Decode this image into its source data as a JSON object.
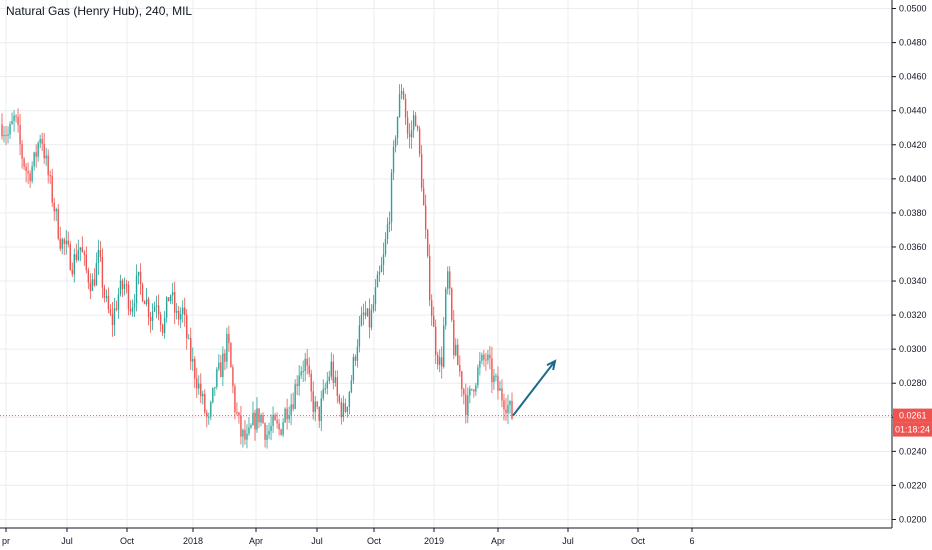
{
  "header": {
    "title": "Natural Gas (Henry Hub), 240, MIL"
  },
  "chart_data": {
    "type": "line",
    "title": "Natural Gas (Henry Hub), 240, MIL",
    "ylim": [
      0.0195,
      0.0505
    ],
    "y_ticks": [
      "0.0500",
      "0.0480",
      "0.0460",
      "0.0440",
      "0.0420",
      "0.0400",
      "0.0380",
      "0.0360",
      "0.0340",
      "0.0320",
      "0.0300",
      "0.0280",
      "0.0260",
      "0.0240",
      "0.0220",
      "0.0200"
    ],
    "x_ticks": [
      "pr",
      "Jul",
      "Oct",
      "2018",
      "Apr",
      "Jul",
      "Oct",
      "2019",
      "Apr",
      "Jul",
      "Oct",
      "6"
    ],
    "series": [
      {
        "values": [
          0.0432,
          0.0425,
          0.0436,
          0.0415,
          0.0402,
          0.041,
          0.0428,
          0.0405,
          0.0385,
          0.0365,
          0.0358,
          0.035,
          0.0362,
          0.0346,
          0.0338,
          0.0354,
          0.0328,
          0.0315,
          0.0332,
          0.0338,
          0.0325,
          0.034,
          0.0333,
          0.032,
          0.033,
          0.0312,
          0.0335,
          0.0318,
          0.0322,
          0.0298,
          0.0285,
          0.027,
          0.0255,
          0.028,
          0.029,
          0.0305,
          0.0268,
          0.025,
          0.0245,
          0.0258,
          0.0262,
          0.025,
          0.0255,
          0.0252,
          0.0265,
          0.027,
          0.0288,
          0.0292,
          0.027,
          0.026,
          0.0275,
          0.029,
          0.027,
          0.0262,
          0.028,
          0.0305,
          0.032,
          0.0315,
          0.0335,
          0.035,
          0.038,
          0.043,
          0.0457,
          0.042,
          0.044,
          0.04,
          0.0345,
          0.0305,
          0.0288,
          0.0345,
          0.03,
          0.0285,
          0.0265,
          0.028,
          0.029,
          0.0295,
          0.0283,
          0.0275,
          0.027,
          0.0261
        ]
      }
    ],
    "last_price": "0.0261",
    "countdown": "01:18:24",
    "colors": {
      "up": "#26a69a",
      "down": "#ef5350",
      "grid": "#e9ecf1",
      "axis": "#131722",
      "arrow": "#1e6a8c",
      "price_line": "#ef5350"
    }
  }
}
